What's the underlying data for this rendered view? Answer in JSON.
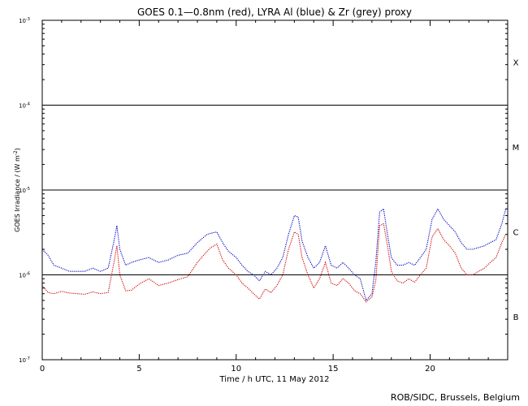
{
  "chart_data": {
    "type": "line",
    "title": "GOES 0.1—0.8nm (red), LYRA Al (blue) & Zr (grey) proxy",
    "xlabel": "Time / h UTC, 11 May 2012",
    "ylabel_main": "GOES Irradiance / (W m",
    "ylabel_sup": "-2",
    "ylabel_end": ")",
    "xlim": [
      0,
      24
    ],
    "ylim": [
      1e-07,
      0.001
    ],
    "yscale": "log",
    "x_ticks": [
      {
        "value": 0,
        "label": "0"
      },
      {
        "value": 5,
        "label": "5"
      },
      {
        "value": 10,
        "label": "10"
      },
      {
        "value": 15,
        "label": "15"
      },
      {
        "value": 20,
        "label": "20"
      }
    ],
    "y_ticks": [
      {
        "value": 1e-07,
        "base": "10",
        "exp": "-7"
      },
      {
        "value": 1e-06,
        "base": "10",
        "exp": "-6"
      },
      {
        "value": 1e-05,
        "base": "10",
        "exp": "-5"
      },
      {
        "value": 0.0001,
        "base": "10",
        "exp": "-4"
      },
      {
        "value": 0.001,
        "base": "10",
        "exp": "-3"
      }
    ],
    "reference_lines": [
      1e-06,
      1e-05,
      0.0001
    ],
    "flare_classes": [
      {
        "label": "X",
        "value": 0.00032
      },
      {
        "label": "M",
        "value": 3.2e-05
      },
      {
        "label": "C",
        "value": 3.2e-06
      },
      {
        "label": "B",
        "value": 3.2e-07
      }
    ],
    "series": [
      {
        "color": "#d00000",
        "x": [
          0,
          0.3,
          0.6,
          1.0,
          1.4,
          1.8,
          2.2,
          2.6,
          3.0,
          3.4,
          3.7,
          3.85,
          4.0,
          4.3,
          4.6,
          5.0,
          5.5,
          6.0,
          6.5,
          7.0,
          7.5,
          8.0,
          8.5,
          8.7,
          9.0,
          9.3,
          9.6,
          10.0,
          10.3,
          10.6,
          10.9,
          11.2,
          11.5,
          11.8,
          12.1,
          12.4,
          12.7,
          13.0,
          13.2,
          13.4,
          13.7,
          14.0,
          14.3,
          14.6,
          14.9,
          15.2,
          15.5,
          15.8,
          16.1,
          16.4,
          16.7,
          17.0,
          17.2,
          17.4,
          17.6,
          17.8,
          18.0,
          18.3,
          18.6,
          18.9,
          19.2,
          19.5,
          19.8,
          20.1,
          20.4,
          20.7,
          21.0,
          21.3,
          21.6,
          21.9,
          22.2,
          22.5,
          22.8,
          23.1,
          23.4,
          23.7,
          23.9
        ],
        "y": [
          7.5e-07,
          6.2e-07,
          6e-07,
          6.4e-07,
          6.1e-07,
          6e-07,
          5.9e-07,
          6.3e-07,
          6e-07,
          6.2e-07,
          1.4e-06,
          2.2e-06,
          1e-06,
          6.5e-07,
          6.6e-07,
          7.8e-07,
          9e-07,
          7.5e-07,
          8e-07,
          8.8e-07,
          9.5e-07,
          1.4e-06,
          1.9e-06,
          2.1e-06,
          2.3e-06,
          1.5e-06,
          1.2e-06,
          1e-06,
          8e-07,
          7e-07,
          6e-07,
          5.2e-07,
          6.8e-07,
          6.2e-07,
          7.5e-07,
          1e-06,
          2e-06,
          3.2e-06,
          3e-06,
          1.6e-06,
          1e-06,
          7e-07,
          9e-07,
          1.4e-06,
          8e-07,
          7.5e-07,
          9e-07,
          8e-07,
          6.5e-07,
          6e-07,
          4.8e-07,
          5.5e-07,
          8.5e-07,
          3.8e-06,
          4e-06,
          2.2e-06,
          1.1e-06,
          8.5e-07,
          8e-07,
          9e-07,
          8.2e-07,
          1e-06,
          1.2e-06,
          2.8e-06,
          3.5e-06,
          2.6e-06,
          2.2e-06,
          1.8e-06,
          1.2e-06,
          1e-06,
          1e-06,
          1.1e-06,
          1.2e-06,
          1.4e-06,
          1.6e-06,
          2.4e-06,
          3e-06
        ]
      },
      {
        "color": "#0000c0",
        "x": [
          0,
          0.3,
          0.6,
          1.0,
          1.4,
          1.8,
          2.2,
          2.6,
          3.0,
          3.4,
          3.7,
          3.85,
          4.0,
          4.3,
          4.6,
          5.0,
          5.5,
          6.0,
          6.5,
          7.0,
          7.5,
          8.0,
          8.5,
          8.7,
          9.0,
          9.3,
          9.6,
          10.0,
          10.3,
          10.6,
          10.9,
          11.2,
          11.5,
          11.8,
          12.1,
          12.4,
          12.7,
          13.0,
          13.2,
          13.4,
          13.7,
          14.0,
          14.3,
          14.6,
          14.9,
          15.2,
          15.5,
          15.8,
          16.1,
          16.4,
          16.7,
          17.0,
          17.2,
          17.4,
          17.6,
          17.8,
          18.0,
          18.3,
          18.6,
          18.9,
          19.2,
          19.5,
          19.8,
          20.1,
          20.4,
          20.7,
          21.0,
          21.3,
          21.6,
          21.9,
          22.2,
          22.5,
          22.8,
          23.1,
          23.4,
          23.7,
          23.9
        ],
        "y": [
          2e-06,
          1.7e-06,
          1.3e-06,
          1.2e-06,
          1.1e-06,
          1.1e-06,
          1.1e-06,
          1.2e-06,
          1.1e-06,
          1.2e-06,
          2.5e-06,
          3.8e-06,
          2e-06,
          1.3e-06,
          1.4e-06,
          1.5e-06,
          1.6e-06,
          1.4e-06,
          1.5e-06,
          1.7e-06,
          1.8e-06,
          2.4e-06,
          3e-06,
          3.1e-06,
          3.2e-06,
          2.4e-06,
          1.9e-06,
          1.6e-06,
          1.3e-06,
          1.1e-06,
          1e-06,
          8.5e-07,
          1.1e-06,
          1e-06,
          1.2e-06,
          1.6e-06,
          3e-06,
          5e-06,
          4.8e-06,
          2.5e-06,
          1.6e-06,
          1.2e-06,
          1.4e-06,
          2.2e-06,
          1.3e-06,
          1.2e-06,
          1.4e-06,
          1.2e-06,
          1e-06,
          9e-07,
          5e-07,
          6e-07,
          1.4e-06,
          5.5e-06,
          6e-06,
          3e-06,
          1.6e-06,
          1.3e-06,
          1.3e-06,
          1.4e-06,
          1.3e-06,
          1.6e-06,
          2e-06,
          4.5e-06,
          6e-06,
          4.5e-06,
          3.8e-06,
          3.2e-06,
          2.4e-06,
          2e-06,
          2e-06,
          2.1e-06,
          2.2e-06,
          2.4e-06,
          2.6e-06,
          4e-06,
          6e-06
        ]
      }
    ]
  },
  "credit": "ROB/SIDC, Brussels, Belgium"
}
